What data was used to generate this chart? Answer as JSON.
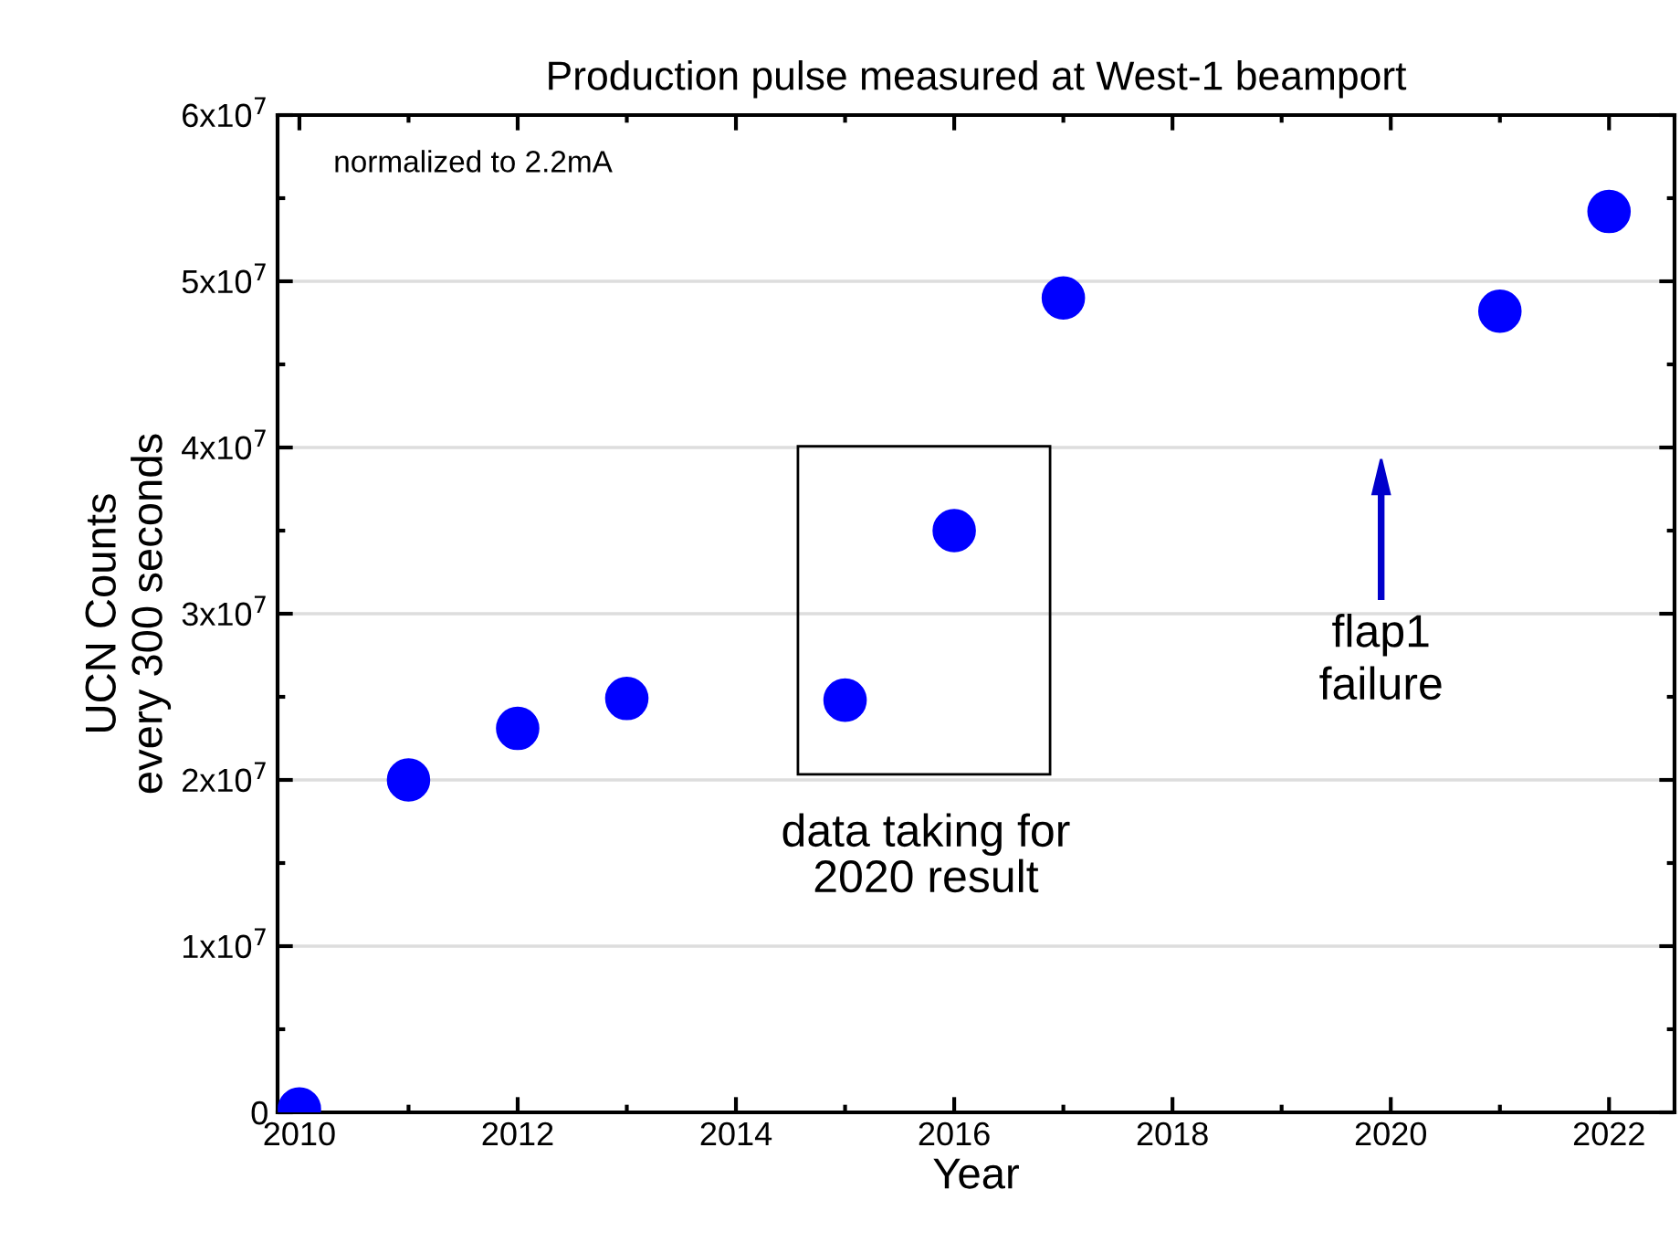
{
  "chart_data": {
    "type": "scatter",
    "title": "Production pulse measured at West-1 beamport",
    "xlabel": "Year",
    "ylabel": "UCN Counts\nevery 300 seconds",
    "x": [
      2010,
      2011,
      2012,
      2013,
      2015,
      2016,
      2017,
      2021,
      2022
    ],
    "series": [
      {
        "color": "#0000ff",
        "values": [
          200000,
          20000000,
          23100000,
          24900000,
          24800000,
          35000000,
          49000000,
          48200000,
          54200000
        ]
      }
    ],
    "marker": "circle",
    "grid": "y",
    "xlim": [
      2009.8,
      2022.6
    ],
    "xticks": [
      2010,
      2012,
      2014,
      2016,
      2018,
      2020,
      2022
    ],
    "ylim": [
      0,
      60000000
    ],
    "yticks": [
      {
        "value": 0,
        "label": "0"
      },
      {
        "value": 10000000,
        "label": "1x10$^{7}$"
      },
      {
        "value": 20000000,
        "label": "2x10$^{7}$"
      },
      {
        "value": 30000000,
        "label": "3x10$^{7}$"
      },
      {
        "value": 40000000,
        "label": "4x10$^{7}$"
      },
      {
        "value": 50000000,
        "label": "5x10$^{7}$"
      },
      {
        "value": 60000000,
        "label": "6x10$^{7}$"
      }
    ],
    "annotations": [
      "normalized to 2.2mA",
      "data taking for\n2020 result",
      "flap1\nfailure"
    ]
  }
}
